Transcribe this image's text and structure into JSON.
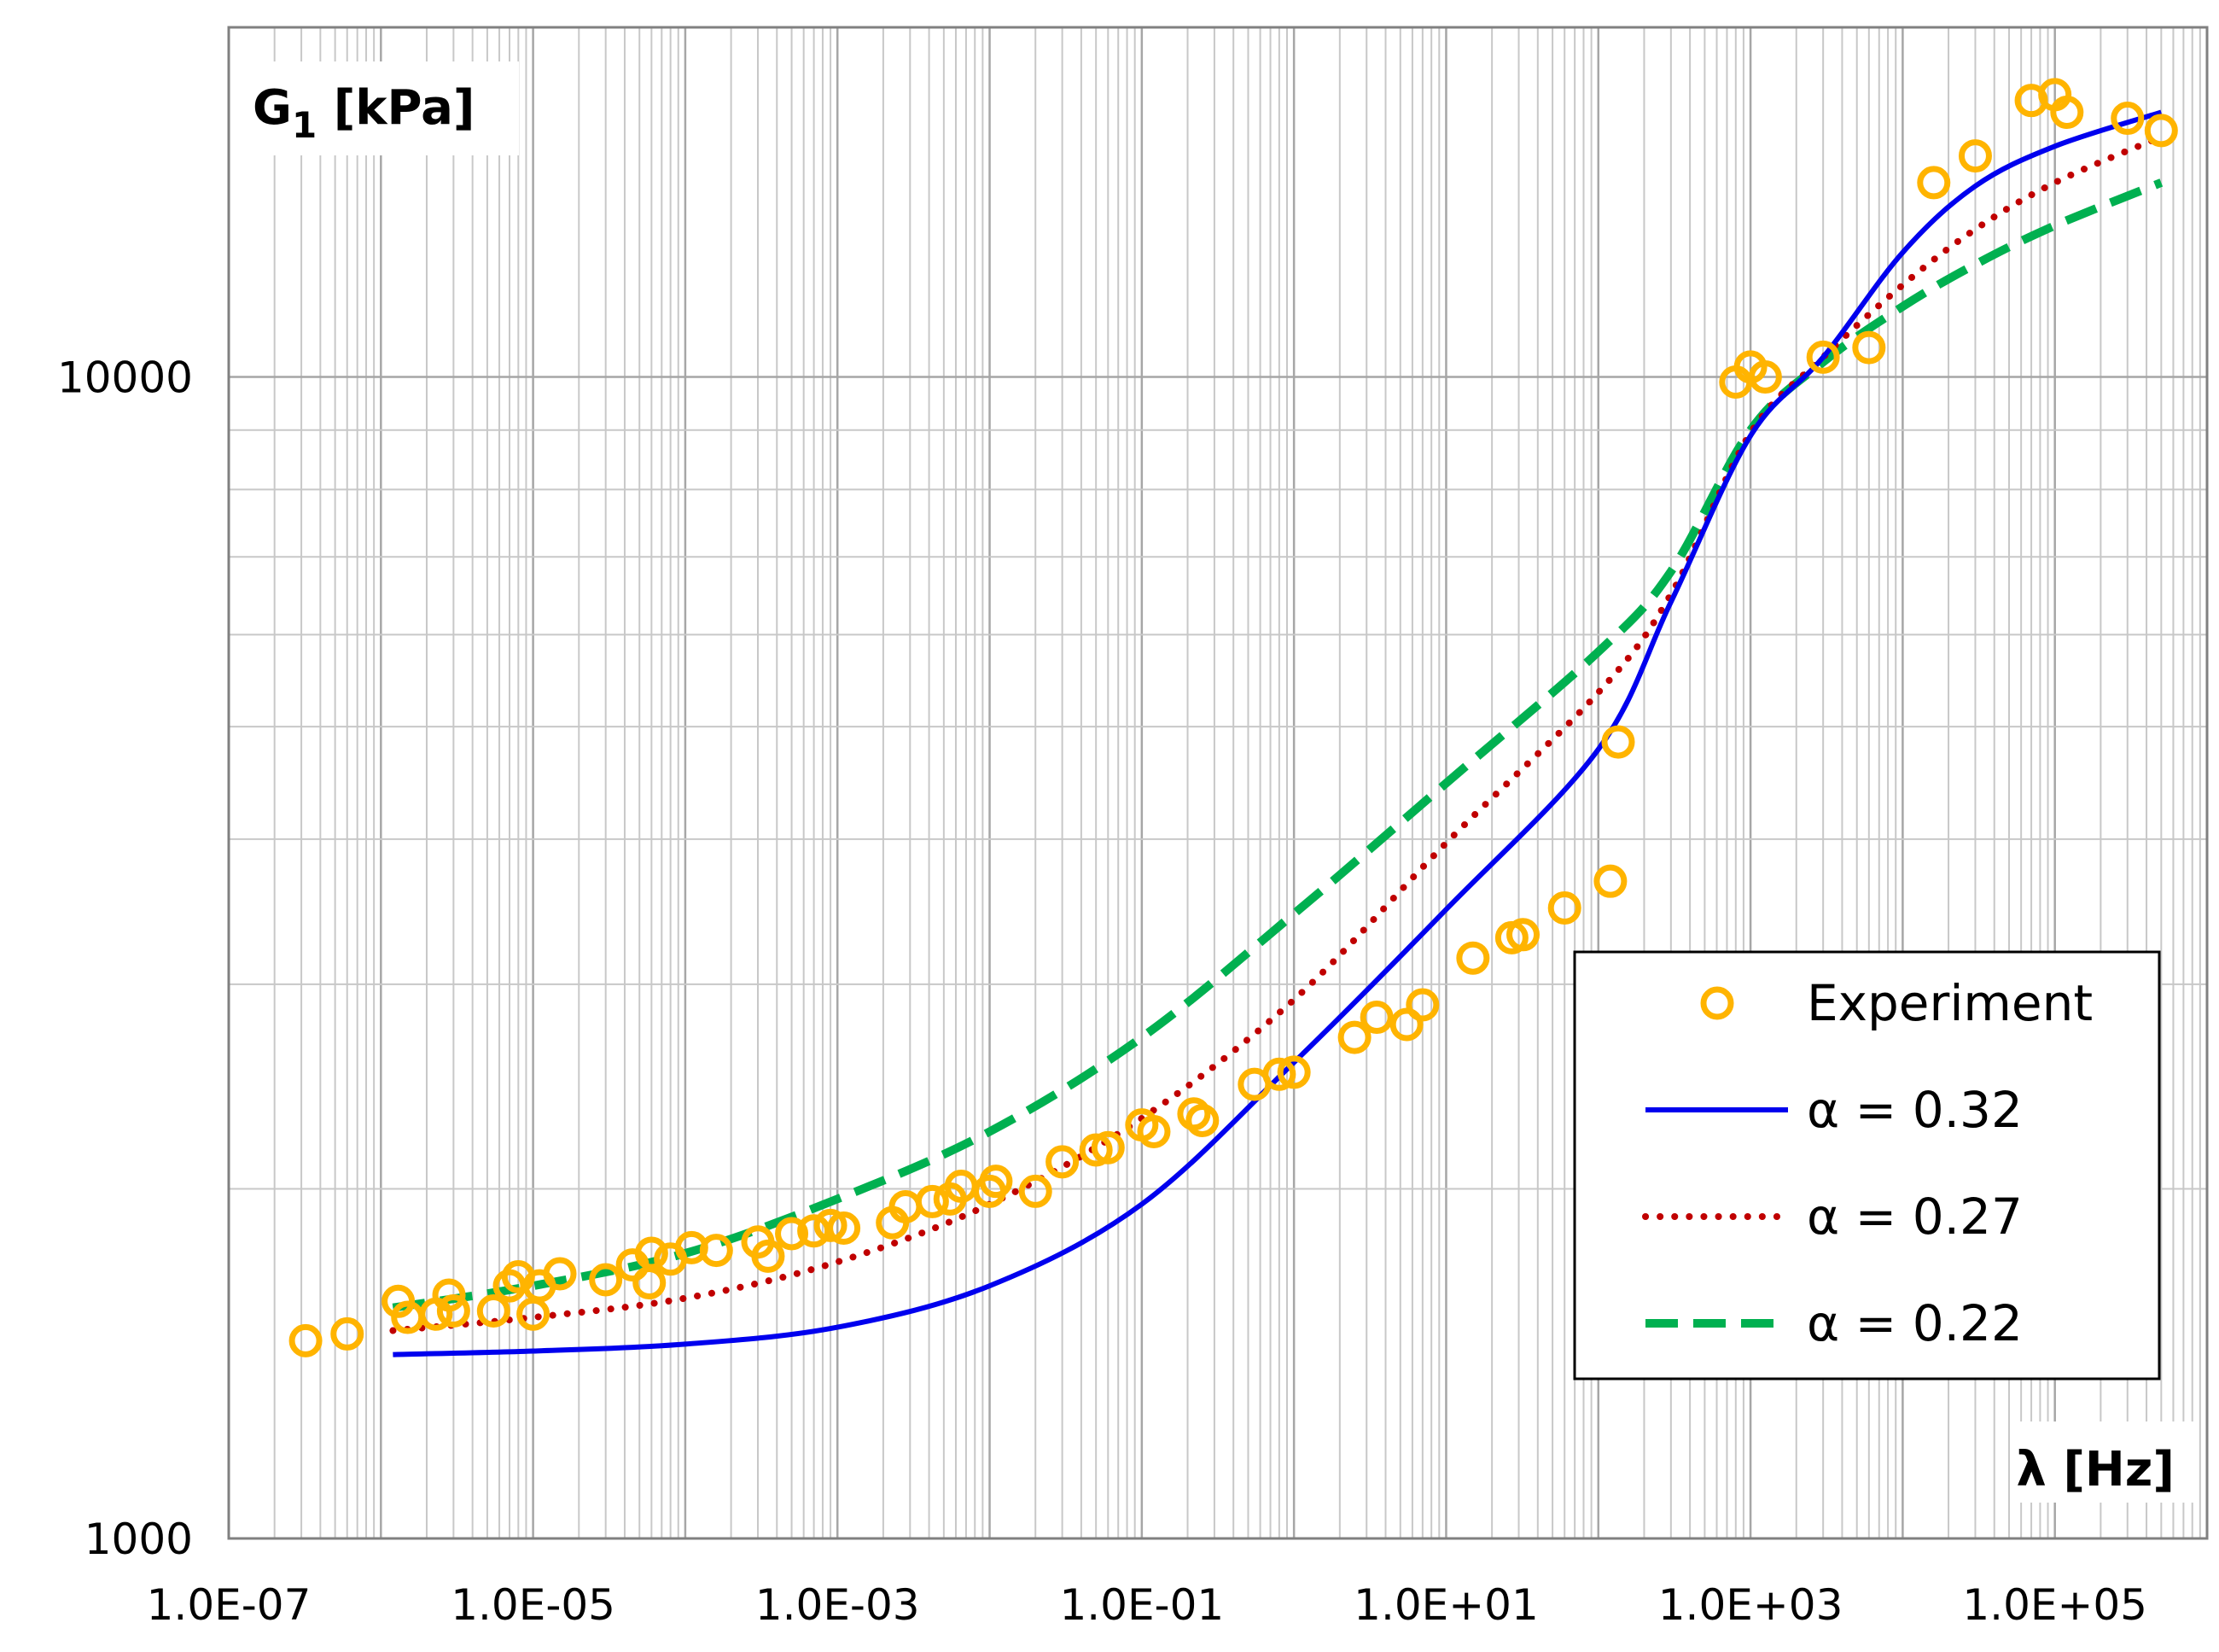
{
  "chart_data": {
    "type": "scatter",
    "xlabel": "λ [Hz]",
    "ylabel": "G",
    "ylabel_sub": "1",
    "ylabel_unit": " [kPa]",
    "xscale": "log",
    "yscale": "log",
    "xlim": [
      1e-07,
      1000000.0
    ],
    "ylim": [
      1000,
      20000
    ],
    "grid": true,
    "legend_placement": "bottom-right",
    "x_ticks": [
      {
        "value": 1e-07,
        "label": "1.0E-07"
      },
      {
        "value": 1e-05,
        "label": "1.0E-05"
      },
      {
        "value": 0.001,
        "label": "1.0E-03"
      },
      {
        "value": 0.1,
        "label": "1.0E-01"
      },
      {
        "value": 10,
        "label": "1.0E+01"
      },
      {
        "value": 1000,
        "label": "1.0E+03"
      },
      {
        "value": 100000,
        "label": "1.0E+05"
      }
    ],
    "y_ticks": [
      {
        "value": 1000,
        "label": "1000"
      },
      {
        "value": 10000,
        "label": "10000"
      }
    ],
    "series": [
      {
        "name": "Experiment",
        "style": "marker-circle",
        "color": "#FFB400",
        "points": [
          [
            3.2e-07,
            1480
          ],
          [
            6e-07,
            1500
          ],
          [
            1.3e-06,
            1600
          ],
          [
            1.5e-06,
            1550
          ],
          [
            2.3e-06,
            1560
          ],
          [
            2.8e-06,
            1620
          ],
          [
            3e-06,
            1570
          ],
          [
            5.5e-06,
            1570
          ],
          [
            7e-06,
            1650
          ],
          [
            8e-06,
            1680
          ],
          [
            1e-05,
            1560
          ],
          [
            1.1e-05,
            1650
          ],
          [
            1.5e-05,
            1690
          ],
          [
            3e-05,
            1670
          ],
          [
            4.5e-05,
            1720
          ],
          [
            5.8e-05,
            1660
          ],
          [
            6e-05,
            1760
          ],
          [
            8e-05,
            1740
          ],
          [
            0.00011,
            1780
          ],
          [
            0.00016,
            1770
          ],
          [
            0.0003,
            1800
          ],
          [
            0.00035,
            1750
          ],
          [
            0.0005,
            1830
          ],
          [
            0.0007,
            1840
          ],
          [
            0.0009,
            1860
          ],
          [
            0.0011,
            1850
          ],
          [
            0.0023,
            1870
          ],
          [
            0.0028,
            1930
          ],
          [
            0.0042,
            1950
          ],
          [
            0.0055,
            1960
          ],
          [
            0.0065,
            2010
          ],
          [
            0.01,
            1990
          ],
          [
            0.011,
            2030
          ],
          [
            0.02,
            1990
          ],
          [
            0.03,
            2110
          ],
          [
            0.05,
            2160
          ],
          [
            0.06,
            2170
          ],
          [
            0.1,
            2270
          ],
          [
            0.12,
            2240
          ],
          [
            0.22,
            2320
          ],
          [
            0.25,
            2290
          ],
          [
            0.55,
            2460
          ],
          [
            0.8,
            2510
          ],
          [
            1.0,
            2520
          ],
          [
            2.5,
            2700
          ],
          [
            3.5,
            2810
          ],
          [
            5.5,
            2770
          ],
          [
            7,
            2880
          ],
          [
            15,
            3160
          ],
          [
            27,
            3290
          ],
          [
            32,
            3310
          ],
          [
            60,
            3490
          ],
          [
            120,
            3680
          ],
          [
            135,
            4850
          ],
          [
            800,
            9900
          ],
          [
            1000,
            10200
          ],
          [
            1250,
            10000
          ],
          [
            3000,
            10400
          ],
          [
            6000,
            10600
          ],
          [
            16000,
            14700
          ],
          [
            30000,
            15500
          ],
          [
            70000,
            17300
          ],
          [
            100000,
            17500
          ],
          [
            120000,
            16900
          ],
          [
            300000,
            16700
          ],
          [
            500000,
            16300
          ]
        ]
      },
      {
        "name": "α = 0.32",
        "style": "solid",
        "color": "#0000EE",
        "points": [
          [
            1.2e-06,
            1440
          ],
          [
            1e-05,
            1450
          ],
          [
            0.0001,
            1470
          ],
          [
            0.001,
            1520
          ],
          [
            0.01,
            1650
          ],
          [
            0.1,
            1940
          ],
          [
            1,
            2570
          ],
          [
            10,
            3480
          ],
          [
            100,
            4780
          ],
          [
            300,
            6400
          ],
          [
            1000,
            8900
          ],
          [
            3000,
            10400
          ],
          [
            10000,
            12800
          ],
          [
            30000,
            14600
          ],
          [
            100000,
            15800
          ],
          [
            500000,
            16900
          ]
        ]
      },
      {
        "name": "α = 0.27",
        "style": "dotted",
        "color": "#C00000",
        "points": [
          [
            1.2e-06,
            1510
          ],
          [
            1e-05,
            1550
          ],
          [
            0.0001,
            1610
          ],
          [
            0.001,
            1730
          ],
          [
            0.01,
            1940
          ],
          [
            0.1,
            2300
          ],
          [
            1,
            2910
          ],
          [
            10,
            3970
          ],
          [
            100,
            5350
          ],
          [
            300,
            6500
          ],
          [
            1000,
            8950
          ],
          [
            3000,
            10400
          ],
          [
            10000,
            12000
          ],
          [
            30000,
            13400
          ],
          [
            100000,
            14700
          ],
          [
            500000,
            16100
          ]
        ]
      },
      {
        "name": "α = 0.22",
        "style": "dashed",
        "color": "#00B050",
        "points": [
          [
            1.2e-06,
            1580
          ],
          [
            1e-05,
            1650
          ],
          [
            0.0001,
            1760
          ],
          [
            0.001,
            1960
          ],
          [
            0.01,
            2240
          ],
          [
            0.1,
            2700
          ],
          [
            1,
            3450
          ],
          [
            10,
            4470
          ],
          [
            100,
            5800
          ],
          [
            300,
            6800
          ],
          [
            1000,
            9000
          ],
          [
            3000,
            10300
          ],
          [
            10000,
            11500
          ],
          [
            30000,
            12500
          ],
          [
            100000,
            13500
          ],
          [
            500000,
            14700
          ]
        ]
      }
    ]
  }
}
